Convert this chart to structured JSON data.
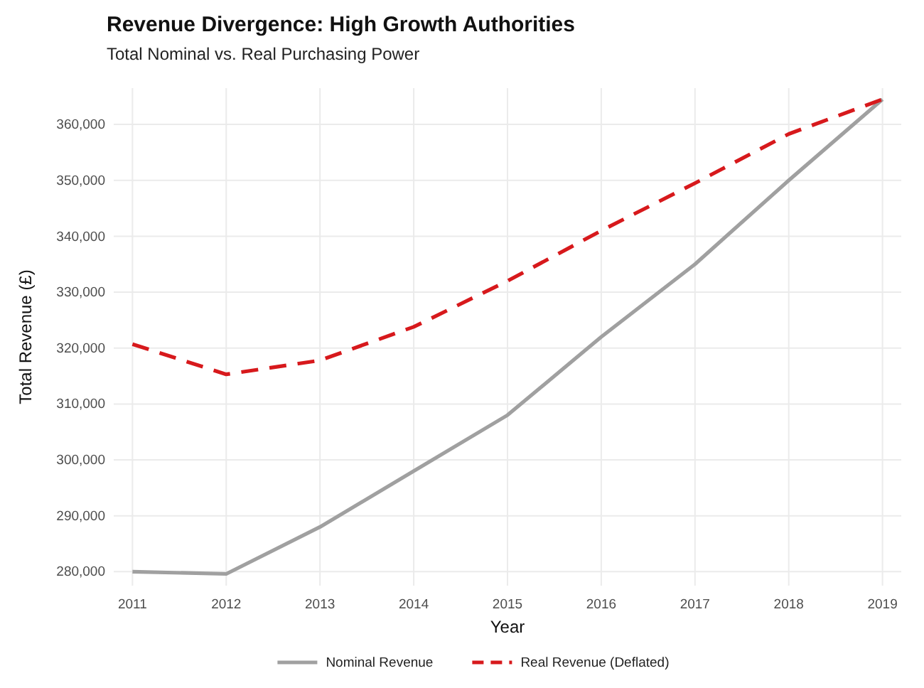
{
  "chart_data": {
    "type": "line",
    "title": "Revenue Divergence: High Growth Authorities",
    "subtitle": "Total Nominal vs. Real Purchasing Power",
    "xlabel": "Year",
    "ylabel": "Total Revenue (£)",
    "x": [
      2011,
      2012,
      2013,
      2014,
      2015,
      2016,
      2017,
      2018,
      2019
    ],
    "xlim": [
      2010.8,
      2019.2
    ],
    "xticks": [
      2011,
      2012,
      2013,
      2014,
      2015,
      2016,
      2017,
      2018,
      2019
    ],
    "ylim": [
      277500,
      366500
    ],
    "yticks": [
      {
        "value": 280000,
        "label": "280,000"
      },
      {
        "value": 290000,
        "label": "290,000"
      },
      {
        "value": 300000,
        "label": "300,000"
      },
      {
        "value": 310000,
        "label": "310,000"
      },
      {
        "value": 320000,
        "label": "320,000"
      },
      {
        "value": 330000,
        "label": "330,000"
      },
      {
        "value": 340000,
        "label": "340,000"
      },
      {
        "value": 350000,
        "label": "350,000"
      },
      {
        "value": 360000,
        "label": "360,000"
      }
    ],
    "grid": true,
    "legend": "bottom",
    "series": [
      {
        "name": "Nominal Revenue",
        "color": "#a0a0a0",
        "line_style": "solid",
        "values": [
          280000,
          279600,
          288000,
          298000,
          308000,
          322000,
          335000,
          350000,
          364500
        ]
      },
      {
        "name": "Real Revenue (Deflated)",
        "color": "#d7191c",
        "line_style": "dashed",
        "values": [
          320700,
          315300,
          317800,
          323800,
          332000,
          341000,
          349500,
          358300,
          364500
        ]
      }
    ]
  }
}
